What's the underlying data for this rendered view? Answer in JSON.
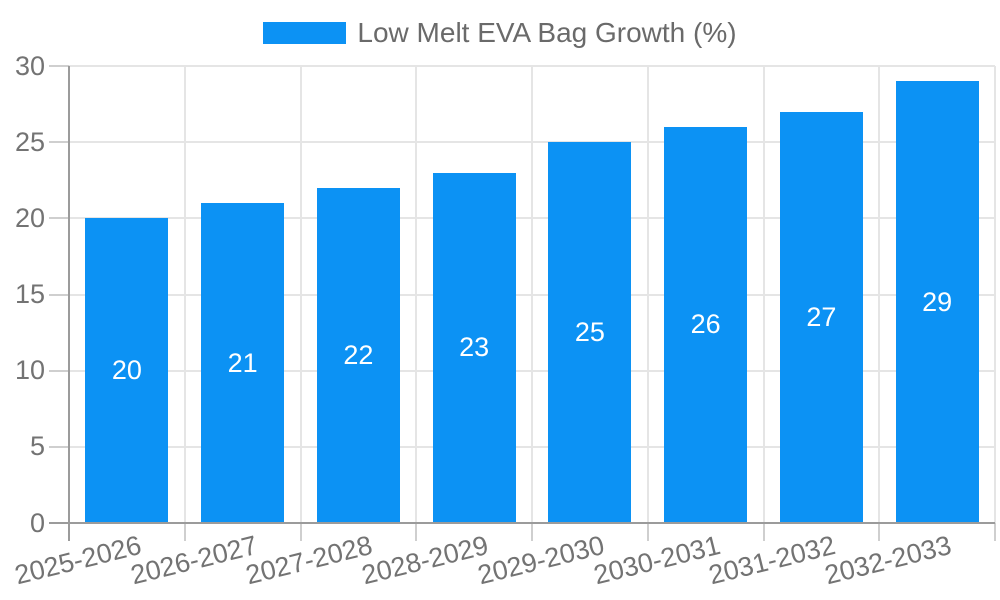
{
  "legend": {
    "label": "Low Melt EVA Bag Growth (%)"
  },
  "chart_data": {
    "type": "bar",
    "title": "",
    "categories": [
      "2025-2026",
      "2026-2027",
      "2027-2028",
      "2028-2029",
      "2029-2030",
      "2030-2031",
      "2031-2032",
      "2032-2033"
    ],
    "series": [
      {
        "name": "Low Melt EVA Bag Growth (%)",
        "values": [
          20,
          21,
          22,
          23,
          25,
          26,
          27,
          29
        ]
      }
    ],
    "bar_value_labels": [
      "20",
      "21",
      "22",
      "23",
      "25",
      "26",
      "27",
      "29"
    ],
    "xlabel": "",
    "ylabel": "",
    "ylim": [
      0,
      30
    ],
    "yticks": [
      0,
      5,
      10,
      15,
      20,
      25,
      30
    ],
    "grid": true,
    "legend_position": "top-center",
    "colors": {
      "bar": "#0c92f4",
      "bar_value_text": "#ffffff",
      "grid_line": "#e5e5e5",
      "axis_line": "#9b9b9b",
      "tick_mark": "#cfcfcf",
      "tick_text": "#737373",
      "legend_text": "#6a6a6a",
      "background": "#ffffff"
    }
  }
}
